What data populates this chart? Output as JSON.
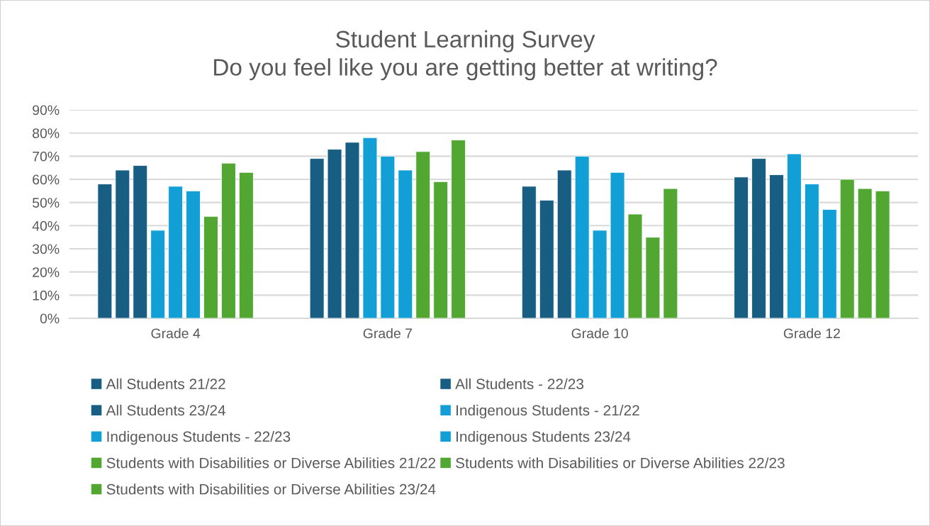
{
  "chart_data": {
    "type": "bar",
    "title": "Student Learning Survey\nDo you feel like you are getting better at writing?",
    "categories": [
      "Grade 4",
      "Grade 7",
      "Grade 10",
      "Grade 12"
    ],
    "series": [
      {
        "name": "All Students 21/22",
        "color": "#175e82",
        "values": [
          58,
          69,
          57,
          61
        ]
      },
      {
        "name": "All Students - 22/23",
        "color": "#175e82",
        "values": [
          64,
          73,
          51,
          69
        ]
      },
      {
        "name": "All Students 23/24",
        "color": "#175e82",
        "values": [
          66,
          76,
          64,
          62
        ]
      },
      {
        "name": "Indigenous Students - 21/22",
        "color": "#119fd6",
        "values": [
          38,
          78,
          70,
          71
        ]
      },
      {
        "name": "Indigenous Students - 22/23",
        "color": "#119fd6",
        "values": [
          57,
          70,
          38,
          58
        ]
      },
      {
        "name": "Indigenous Students 23/24",
        "color": "#119fd6",
        "values": [
          55,
          64,
          63,
          47
        ]
      },
      {
        "name": "Students with Disabilities or Diverse Abilities 21/22",
        "color": "#51a731",
        "values": [
          44,
          72,
          45,
          60
        ]
      },
      {
        "name": "Students with Disabilities or Diverse Abilities 22/23",
        "color": "#51a731",
        "values": [
          67,
          59,
          35,
          56
        ]
      },
      {
        "name": "Students with Disabilities or Diverse Abilities 23/24",
        "color": "#51a731",
        "values": [
          63,
          77,
          56,
          55
        ]
      }
    ],
    "ylim": [
      0,
      90
    ],
    "yticks": [
      {
        "value": 0,
        "label": "0%"
      },
      {
        "value": 10,
        "label": "10%"
      },
      {
        "value": 20,
        "label": "20%"
      },
      {
        "value": 30,
        "label": "30%"
      },
      {
        "value": 40,
        "label": "40%"
      },
      {
        "value": 50,
        "label": "50%"
      },
      {
        "value": 60,
        "label": "60%"
      },
      {
        "value": 70,
        "label": "70%"
      },
      {
        "value": 80,
        "label": "80%"
      },
      {
        "value": 90,
        "label": "90%"
      }
    ],
    "grid": "y",
    "legend": "bottom"
  }
}
